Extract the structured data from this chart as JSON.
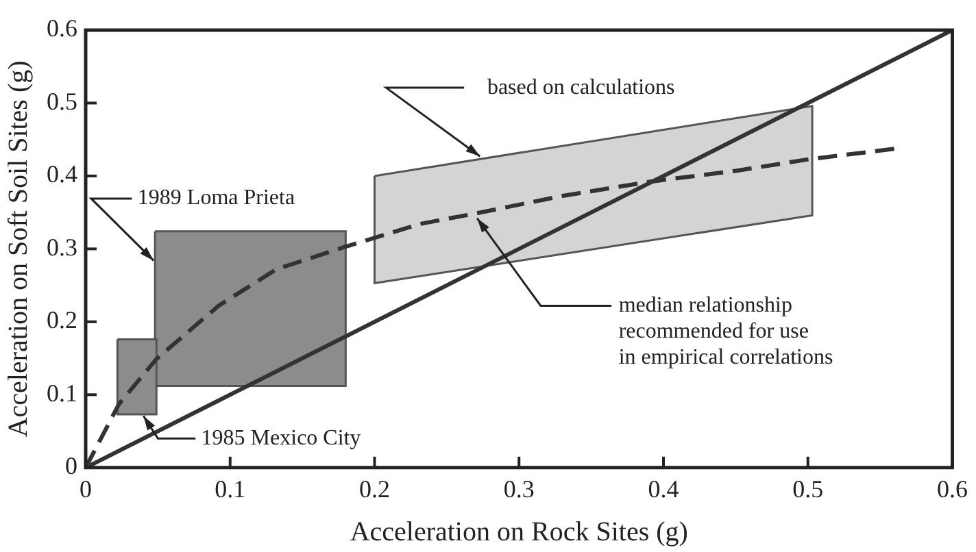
{
  "chart_data": {
    "type": "line",
    "xlabel": "Acceleration on Rock Sites (g)",
    "ylabel": "Acceleration on Soft Soil Sites (g)",
    "xlim": [
      0,
      0.6
    ],
    "ylim": [
      0,
      0.6
    ],
    "xticks": [
      0,
      0.1,
      0.2,
      0.3,
      0.4,
      0.5,
      0.6
    ],
    "yticks": [
      0,
      0.1,
      0.2,
      0.3,
      0.4,
      0.5,
      0.6
    ],
    "grid": false,
    "legend": false,
    "marker": "none",
    "series": [
      {
        "type": "area",
        "color": "#8c8c8c",
        "x": [
          0.022,
          0.049,
          0.049,
          0.022,
          0.022
        ],
        "values": [
          0.176,
          0.176,
          0.073,
          0.073,
          0.176
        ]
      },
      {
        "type": "area",
        "color": "#8c8c8c",
        "x": [
          0.048,
          0.18,
          0.18,
          0.048,
          0.048
        ],
        "values": [
          0.324,
          0.324,
          0.112,
          0.112,
          0.324
        ]
      },
      {
        "type": "area",
        "color": "#d4d4d4",
        "x": [
          0.2,
          0.503,
          0.503,
          0.2,
          0.2
        ],
        "values": [
          0.4,
          0.496,
          0.346,
          0.253,
          0.4
        ]
      },
      {
        "type": "line",
        "color": "#333333",
        "line_style": "solid",
        "x": [
          0,
          0.6
        ],
        "values": [
          0,
          0.6
        ]
      },
      {
        "type": "line",
        "color": "#333333",
        "line_style": "dashed",
        "x": [
          0,
          0.023,
          0.049,
          0.092,
          0.132,
          0.18,
          0.231,
          0.271,
          0.331,
          0.39,
          0.45,
          0.501,
          0.563
        ],
        "values": [
          0,
          0.087,
          0.149,
          0.222,
          0.272,
          0.303,
          0.334,
          0.349,
          0.373,
          0.392,
          0.407,
          0.423,
          0.438
        ]
      }
    ],
    "annotations": [
      {
        "text": "based on calculations",
        "x": 0.273,
        "y": 0.427
      },
      {
        "text": "1989 Loma Prieta",
        "x": 0.047,
        "y": 0.284
      },
      {
        "text": "1985 Mexico City",
        "x": 0.04,
        "y": 0.071
      },
      {
        "text": "median relationship\nrecommended for use\nin empirical correlations",
        "x": 0.271,
        "y": 0.342
      }
    ]
  }
}
